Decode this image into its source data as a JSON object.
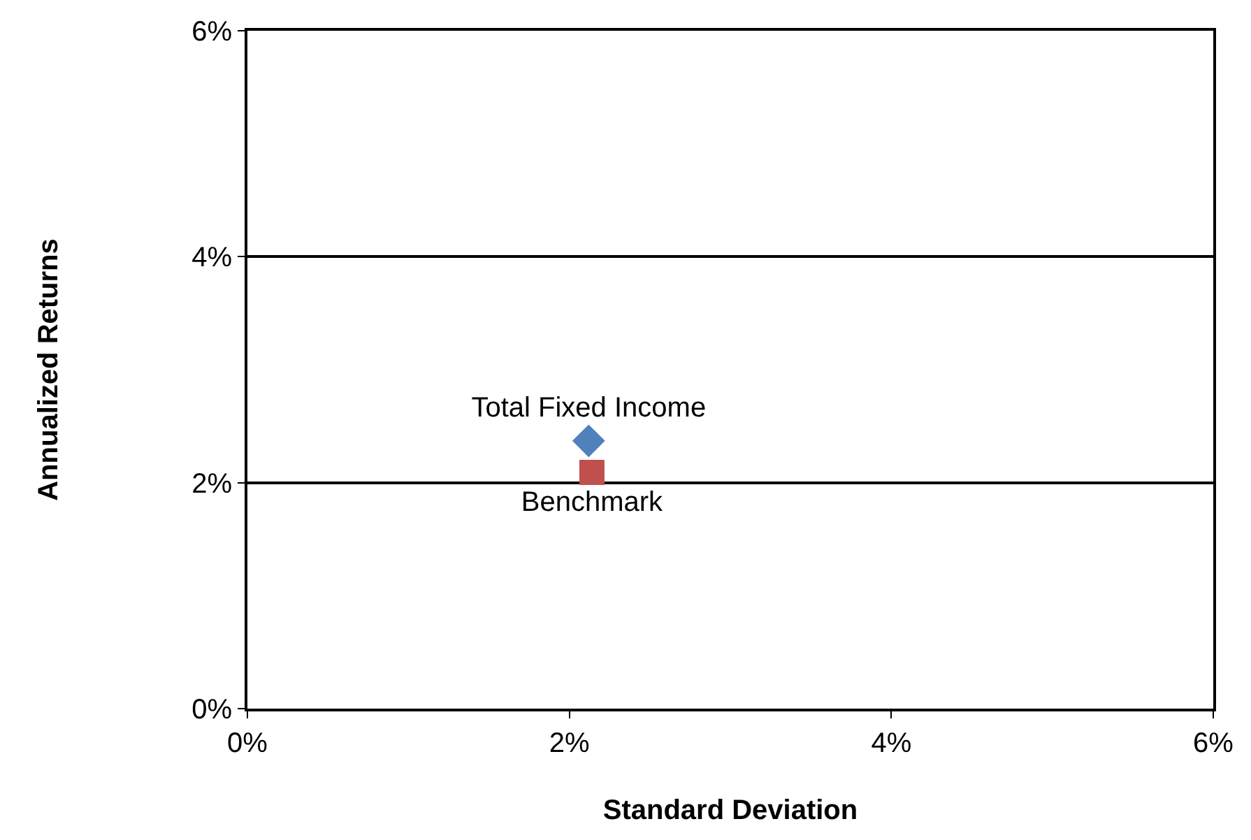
{
  "chart_data": {
    "type": "scatter",
    "xlabel": "Standard Deviation",
    "ylabel": "Annualized Returns",
    "xlim": [
      0,
      6
    ],
    "ylim": [
      0,
      6
    ],
    "xticks": [
      {
        "value": 0,
        "label": "0%"
      },
      {
        "value": 2,
        "label": "2%"
      },
      {
        "value": 4,
        "label": "4%"
      },
      {
        "value": 6,
        "label": "6%"
      }
    ],
    "yticks": [
      {
        "value": 0,
        "label": "0%"
      },
      {
        "value": 2,
        "label": "2%"
      },
      {
        "value": 4,
        "label": "4%"
      },
      {
        "value": 6,
        "label": "6%"
      }
    ],
    "grid": "y",
    "legend": false,
    "series": [
      {
        "name": "Total Fixed Income",
        "color": "#4f81bd",
        "marker": "diamond",
        "x": [
          2.12
        ],
        "values": [
          2.37
        ]
      },
      {
        "name": "Benchmark",
        "color": "#c0504d",
        "marker": "square",
        "x": [
          2.14
        ],
        "values": [
          2.09
        ]
      }
    ]
  }
}
